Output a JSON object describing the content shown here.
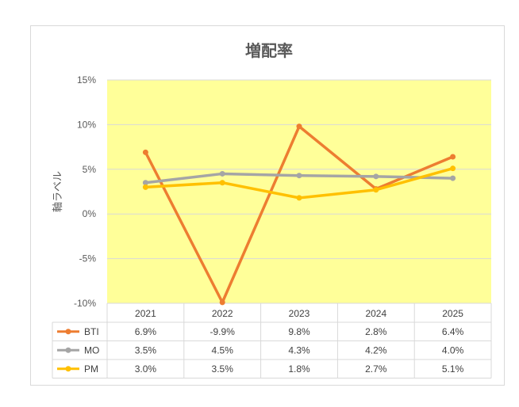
{
  "chart_data": {
    "type": "line",
    "title": "増配率",
    "ylabel": "軸ラベル",
    "ylim": [
      -0.1,
      0.15
    ],
    "yticks": [
      "15%",
      "10%",
      "5%",
      "0%",
      "-5%",
      "-10%"
    ],
    "ytick_values": [
      0.15,
      0.1,
      0.05,
      0.0,
      -0.05,
      -0.1
    ],
    "categories": [
      "2021",
      "2022",
      "2023",
      "2024",
      "2025"
    ],
    "plot_background": "#ffff99",
    "grid": true,
    "legend": "data-table",
    "series": [
      {
        "name": "BTI",
        "color": "#ed7d31",
        "values": [
          0.069,
          -0.099,
          0.098,
          0.028,
          0.064
        ],
        "labels": [
          "6.9%",
          "-9.9%",
          "9.8%",
          "2.8%",
          "6.4%"
        ]
      },
      {
        "name": "MO",
        "color": "#a5a5a5",
        "values": [
          0.035,
          0.045,
          0.043,
          0.042,
          0.04
        ],
        "labels": [
          "3.5%",
          "4.5%",
          "4.3%",
          "4.2%",
          "4.0%"
        ]
      },
      {
        "name": "PM",
        "color": "#ffc000",
        "values": [
          0.03,
          0.035,
          0.018,
          0.027,
          0.051
        ],
        "labels": [
          "3.0%",
          "3.5%",
          "1.8%",
          "2.7%",
          "5.1%"
        ]
      }
    ]
  }
}
